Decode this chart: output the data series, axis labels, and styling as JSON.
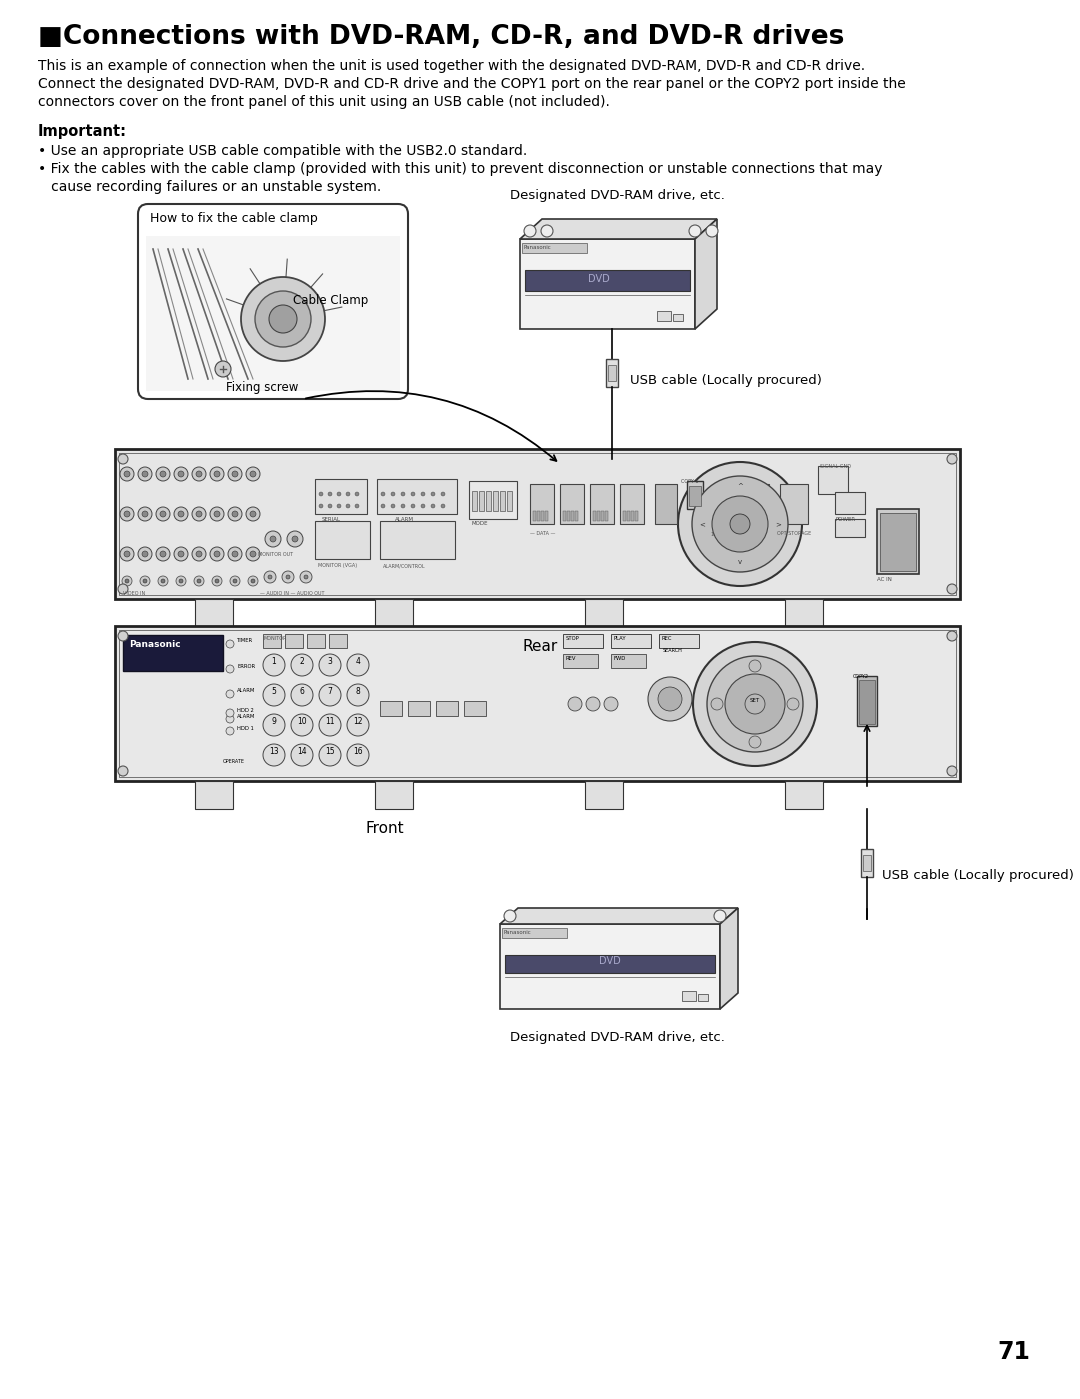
{
  "title": "■Connections with DVD-RAM, CD-R, and DVD-R drives",
  "title_fontsize": 19,
  "body_text_1a": "This is an example of connection when the unit is used together with the designated DVD-RAM, DVD-R and CD-R drive.",
  "body_text_1b": "Connect the designated DVD-RAM, DVD-R and CD-R drive and the COPY1 port on the rear panel or the COPY2 port inside the",
  "body_text_1c": "connectors cover on the front panel of this unit using an USB cable (not included).",
  "important_label": "Important:",
  "bullet1": "• Use an appropriate USB cable compatible with the USB2.0 standard.",
  "bullet2a": "• Fix the cables with the cable clamp (provided with this unit) to prevent disconnection or unstable connections that may",
  "bullet2b": "   cause recording failures or an unstable system.",
  "label_dvd_top": "Designated DVD-RAM drive, etc.",
  "label_usb_top": "USB cable (Locally procured)",
  "label_cable_clamp_box": "How to fix the cable clamp",
  "label_cable_clamp": "Cable Clamp",
  "label_fixing_screw": "Fixing screw",
  "label_rear": "Rear",
  "label_front": "Front",
  "label_usb_bottom": "USB cable (Locally procured)",
  "label_dvd_bottom": "Designated DVD-RAM drive, etc.",
  "page_number": "71",
  "bg_color": "#ffffff",
  "text_color": "#000000",
  "body_fontsize": 10.0,
  "label_fontsize": 9.5,
  "important_fontsize": 10.5
}
